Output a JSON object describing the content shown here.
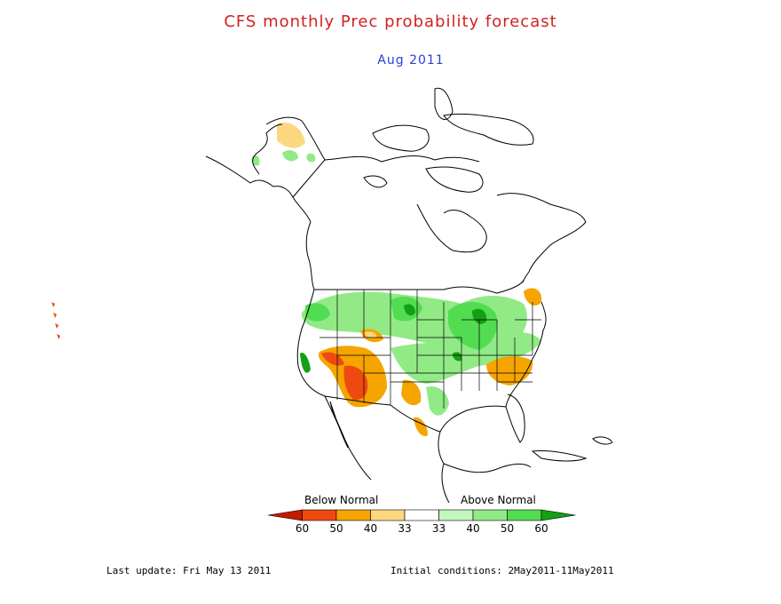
{
  "title": "CFS monthly Prec probability forecast",
  "subtitle": "Aug 2011",
  "legend": {
    "below_label": "Below Normal",
    "above_label": "Above Normal",
    "tick_labels": [
      "60",
      "50",
      "40",
      "33",
      "33",
      "40",
      "50",
      "60"
    ],
    "colors": {
      "below_60": "#c41a00",
      "below_50": "#ee4a10",
      "below_40": "#f6a400",
      "below_33": "#fbd880",
      "normal": "#ffffff",
      "above_33": "#c4f6c0",
      "above_40": "#92ea86",
      "above_50": "#52dc52",
      "above_60": "#14a014"
    }
  },
  "footer": {
    "last_update": "Last update: Fri May 13 2011",
    "initial_conditions": "Initial conditions: 2May2011-11May2011"
  }
}
